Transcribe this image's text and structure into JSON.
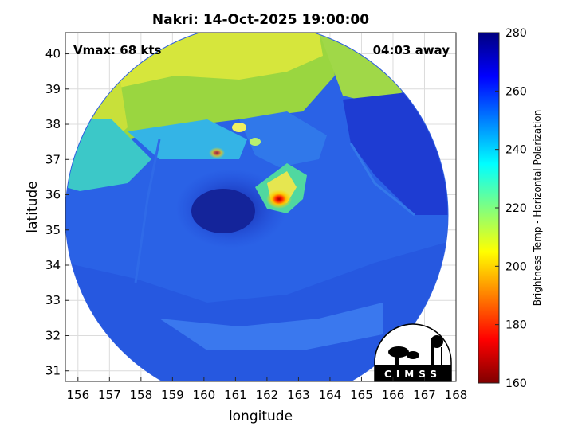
{
  "title": "Nakri: 14-Oct-2025 19:00:00",
  "annotations": {
    "vmax": "Vmax: 68 kts",
    "time_away": "04:03 away"
  },
  "axes": {
    "xlabel": "longitude",
    "ylabel": "latitude",
    "xticks": [
      "156",
      "157",
      "158",
      "159",
      "160",
      "161",
      "162",
      "163",
      "164",
      "165",
      "166",
      "167",
      "168"
    ],
    "yticks": [
      "40",
      "39",
      "38",
      "37",
      "36",
      "35",
      "34",
      "33",
      "32",
      "31"
    ]
  },
  "colorbar": {
    "label": "Brightness Temp - Horizontal Polarization",
    "ticks": [
      "280",
      "260",
      "240",
      "220",
      "200",
      "180",
      "160"
    ],
    "colormap": [
      "#800000",
      "#ff0000",
      "#ff8000",
      "#ffff00",
      "#80ff80",
      "#00ffff",
      "#0080ff",
      "#0000ff",
      "#000080"
    ]
  },
  "logo": {
    "text": "CIMSS"
  },
  "chart_data": {
    "type": "heatmap",
    "title": "Nakri: 14-Oct-2025 19:00:00",
    "xlabel": "longitude",
    "ylabel": "latitude",
    "xlim": [
      155.6,
      168
    ],
    "ylim": [
      30.7,
      40.6
    ],
    "clim": [
      160,
      280
    ],
    "colorbar_label": "Brightness Temp - Horizontal Polarization",
    "grid": true,
    "storm_center": [
      162.4,
      35.8
    ],
    "annotations": [
      "Vmax: 68 kts",
      "04:03 away"
    ]
  }
}
